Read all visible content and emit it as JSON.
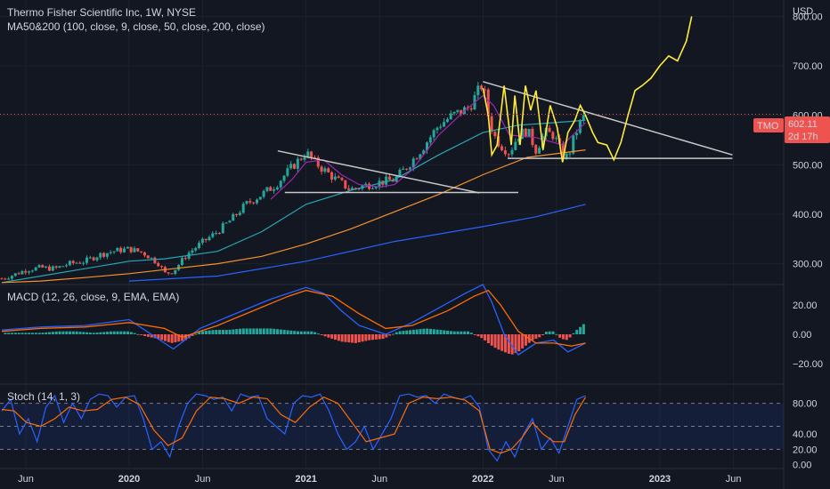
{
  "header": {
    "title": "Thermo Fisher Scientific Inc, 1W, NYSE",
    "ma_label": "MA50&200 (100, close, 9, close, 50, close, 200, close)",
    "currency": "USD"
  },
  "price_tag": {
    "symbol": "TMO",
    "price": "602.11",
    "countdown": "2d 17h"
  },
  "colors": {
    "background": "#131722",
    "up": "#26a69a",
    "down": "#ef5350",
    "ma_purple": "#9c27b0",
    "ma_teal": "#26a6b3",
    "ma_orange": "#f7912a",
    "ma_blue": "#2962ff",
    "projection": "#ffeb3b",
    "trendline": "#c8c8c8",
    "macd": "#2962ff",
    "signal": "#ff6d00",
    "stoch_k": "#2962ff",
    "stoch_d": "#ff6d00",
    "tag": "#ef5350"
  },
  "chart_data": [
    {
      "type": "line",
      "panel": "price",
      "title": "Thermo Fisher Scientific Inc, 1W, NYSE",
      "y_axis_unit": "USD",
      "y_ticks": [
        "800.00",
        "700.00",
        "600.00",
        "500.00",
        "400.00",
        "300.00"
      ],
      "y_tick_values": [
        800,
        700,
        600,
        500,
        400,
        300
      ],
      "ylim": [
        258,
        833
      ],
      "x_ticks": [
        "Jun",
        "2020",
        "Jun",
        "2021",
        "Jun",
        "2022",
        "Jun",
        "2023",
        "Jun"
      ],
      "x_tick_positions": [
        2019.416,
        2020.0,
        2020.416,
        2021.0,
        2021.416,
        2022.0,
        2022.416,
        2023.0,
        2023.416
      ],
      "xlim": [
        2019.27,
        2023.7
      ],
      "close_series": {
        "name": "",
        "x": [
          2019.28,
          2019.35,
          2019.42,
          2019.5,
          2019.58,
          2019.66,
          2019.75,
          2019.83,
          2019.92,
          2020.0,
          2020.08,
          2020.17,
          2020.2,
          2020.25,
          2020.33,
          2020.42,
          2020.5,
          2020.58,
          2020.66,
          2020.75,
          2020.83,
          2020.92,
          2021.0,
          2021.05,
          2021.1,
          2021.17,
          2021.25,
          2021.33,
          2021.42,
          2021.5,
          2021.58,
          2021.66,
          2021.75,
          2021.83,
          2021.92,
          2021.96,
          2022.0,
          2022.03,
          2022.06,
          2022.1,
          2022.15,
          2022.2,
          2022.25,
          2022.3,
          2022.35,
          2022.4,
          2022.45,
          2022.48,
          2022.52,
          2022.55,
          2022.58
        ],
        "values": [
          270,
          278,
          288,
          292,
          290,
          300,
          305,
          318,
          326,
          330,
          322,
          300,
          280,
          285,
          320,
          345,
          365,
          390,
          420,
          440,
          460,
          495,
          525,
          505,
          490,
          470,
          450,
          458,
          465,
          470,
          500,
          535,
          580,
          600,
          615,
          640,
          665,
          600,
          560,
          540,
          525,
          560,
          570,
          530,
          565,
          560,
          520,
          515,
          560,
          585,
          602
        ]
      },
      "ma_series": [
        {
          "name": "",
          "color_key": "ma_teal",
          "x": [
            2019.28,
            2019.5,
            2019.75,
            2020.0,
            2020.2,
            2020.5,
            2020.75,
            2021.0,
            2021.25,
            2021.5,
            2021.75,
            2022.0,
            2022.2,
            2022.4,
            2022.58
          ],
          "values": [
            262,
            275,
            290,
            305,
            310,
            325,
            365,
            420,
            448,
            470,
            520,
            565,
            580,
            585,
            590
          ]
        },
        {
          "name": "",
          "color_key": "ma_orange",
          "x": [
            2019.28,
            2019.5,
            2019.75,
            2020.0,
            2020.25,
            2020.5,
            2020.75,
            2021.0,
            2021.25,
            2021.5,
            2021.75,
            2022.0,
            2022.25,
            2022.58
          ],
          "values": [
            262,
            265,
            272,
            280,
            290,
            300,
            315,
            340,
            370,
            405,
            440,
            480,
            515,
            530
          ]
        },
        {
          "name": "",
          "color_key": "ma_blue",
          "x": [
            2020.0,
            2020.5,
            2021.0,
            2021.5,
            2022.0,
            2022.3,
            2022.58
          ],
          "values": [
            265,
            275,
            305,
            345,
            375,
            395,
            420
          ]
        },
        {
          "name": "",
          "color_key": "ma_purple",
          "x": [
            2020.8,
            2020.92,
            2021.0,
            2021.1,
            2021.2,
            2021.3,
            2021.42,
            2021.5,
            2021.6,
            2021.75,
            2021.9,
            2022.0,
            2022.06,
            2022.15,
            2022.3,
            2022.45,
            2022.58
          ],
          "values": [
            430,
            470,
            505,
            510,
            480,
            460,
            455,
            460,
            490,
            560,
            610,
            640,
            620,
            560,
            555,
            540,
            585
          ]
        }
      ],
      "projection": {
        "name": "",
        "x": [
          2022.0,
          2022.03,
          2022.05,
          2022.08,
          2022.12,
          2022.16,
          2022.18,
          2022.21,
          2022.24,
          2022.27,
          2022.3,
          2022.34,
          2022.38,
          2022.42,
          2022.45,
          2022.48,
          2022.52,
          2022.55,
          2022.58,
          2022.62,
          2022.65,
          2022.7,
          2022.74,
          2022.78,
          2022.82,
          2022.86,
          2022.9,
          2022.95,
          2023.0,
          2023.05,
          2023.1,
          2023.15,
          2023.18
        ],
        "values": [
          655,
          600,
          520,
          540,
          660,
          540,
          640,
          540,
          660,
          610,
          650,
          530,
          620,
          575,
          505,
          565,
          590,
          620,
          600,
          565,
          545,
          540,
          510,
          545,
          600,
          650,
          660,
          675,
          700,
          720,
          710,
          750,
          800
        ]
      },
      "trendlines": [
        {
          "x": [
            2020.84,
            2021.98
          ],
          "values": [
            528,
            443
          ]
        },
        {
          "x": [
            2020.88,
            2022.2
          ],
          "values": [
            444,
            444
          ]
        },
        {
          "x": [
            2022.0,
            2023.41
          ],
          "values": [
            668,
            520
          ]
        },
        {
          "x": [
            2022.14,
            2023.41
          ],
          "values": [
            513,
            513
          ]
        }
      ]
    },
    {
      "type": "line",
      "panel": "macd",
      "title": "MACD (12, 26, close, 9, EMA, EMA)",
      "y_ticks": [
        "20.00",
        "0.00",
        "−20.00"
      ],
      "y_tick_values": [
        20,
        0,
        -20
      ],
      "ylim": [
        -34,
        34
      ],
      "series": [
        {
          "name": "",
          "color_key": "macd",
          "x": [
            2019.28,
            2019.5,
            2019.75,
            2020.0,
            2020.15,
            2020.25,
            2020.4,
            2020.6,
            2020.8,
            2021.0,
            2021.1,
            2021.2,
            2021.3,
            2021.45,
            2021.6,
            2021.75,
            2021.9,
            2022.0,
            2022.05,
            2022.12,
            2022.2,
            2022.3,
            2022.4,
            2022.48,
            2022.58
          ],
          "values": [
            3,
            5,
            6,
            10,
            -2,
            -10,
            4,
            14,
            24,
            32,
            28,
            16,
            6,
            0,
            8,
            18,
            28,
            34,
            22,
            0,
            -14,
            -6,
            -4,
            -12,
            -6
          ]
        },
        {
          "name": "",
          "color_key": "signal",
          "x": [
            2019.28,
            2019.5,
            2019.75,
            2020.0,
            2020.2,
            2020.3,
            2020.5,
            2020.7,
            2020.9,
            2021.0,
            2021.15,
            2021.3,
            2021.45,
            2021.6,
            2021.8,
            2021.95,
            2022.03,
            2022.1,
            2022.2,
            2022.3,
            2022.4,
            2022.5,
            2022.58
          ],
          "values": [
            2,
            4,
            5,
            8,
            4,
            -2,
            6,
            16,
            26,
            30,
            26,
            14,
            4,
            6,
            16,
            26,
            30,
            20,
            2,
            -6,
            -6,
            -8,
            -6
          ]
        }
      ],
      "histogram": {
        "x": [
          2019.3,
          2019.4,
          2019.5,
          2019.6,
          2019.7,
          2019.8,
          2019.9,
          2020.0,
          2020.08,
          2020.16,
          2020.24,
          2020.32,
          2020.4,
          2020.48,
          2020.56,
          2020.64,
          2020.72,
          2020.8,
          2020.88,
          2020.96,
          2021.04,
          2021.12,
          2021.2,
          2021.28,
          2021.36,
          2021.44,
          2021.52,
          2021.6,
          2021.68,
          2021.76,
          2021.84,
          2021.92,
          2022.0,
          2022.04,
          2022.08,
          2022.12,
          2022.16,
          2022.2,
          2022.24,
          2022.28,
          2022.32,
          2022.36,
          2022.4,
          2022.44,
          2022.48,
          2022.52,
          2022.56,
          2022.58
        ],
        "values": [
          1,
          1,
          1,
          2,
          2,
          1,
          2,
          2,
          -1,
          -3,
          -6,
          -4,
          2,
          3,
          3,
          4,
          4,
          4,
          3,
          2,
          2,
          -2,
          -5,
          -6,
          -4,
          -3,
          2,
          3,
          4,
          3,
          2,
          2,
          -3,
          -7,
          -10,
          -12,
          -14,
          -12,
          -8,
          -4,
          -2,
          2,
          2,
          -3,
          -4,
          2,
          6,
          8
        ]
      }
    },
    {
      "type": "line",
      "panel": "stoch",
      "title": "Stoch (14, 1, 3)",
      "y_ticks": [
        "80.00",
        "40.00",
        "20.00",
        "0.00"
      ],
      "y_tick_values": [
        80,
        40,
        20,
        0
      ],
      "ylim": [
        -5,
        105
      ],
      "bands": [
        80,
        50,
        20
      ],
      "series": [
        {
          "name": "",
          "color_key": "stoch_k",
          "x": [
            2019.28,
            2019.33,
            2019.38,
            2019.43,
            2019.48,
            2019.53,
            2019.58,
            2019.63,
            2019.68,
            2019.73,
            2019.78,
            2019.83,
            2019.88,
            2019.93,
            2019.98,
            2020.03,
            2020.08,
            2020.13,
            2020.18,
            2020.23,
            2020.28,
            2020.33,
            2020.38,
            2020.43,
            2020.48,
            2020.53,
            2020.58,
            2020.63,
            2020.68,
            2020.73,
            2020.78,
            2020.83,
            2020.88,
            2020.93,
            2020.98,
            2021.03,
            2021.08,
            2021.13,
            2021.18,
            2021.23,
            2021.28,
            2021.33,
            2021.38,
            2021.43,
            2021.48,
            2021.53,
            2021.58,
            2021.63,
            2021.68,
            2021.73,
            2021.78,
            2021.83,
            2021.88,
            2021.93,
            2021.98,
            2022.03,
            2022.08,
            2022.13,
            2022.18,
            2022.23,
            2022.28,
            2022.33,
            2022.38,
            2022.43,
            2022.48,
            2022.53,
            2022.58
          ],
          "values": [
            70,
            85,
            40,
            60,
            30,
            75,
            90,
            55,
            80,
            60,
            85,
            92,
            90,
            75,
            88,
            90,
            60,
            20,
            30,
            10,
            50,
            80,
            92,
            90,
            85,
            88,
            70,
            92,
            88,
            90,
            60,
            50,
            40,
            80,
            90,
            88,
            92,
            70,
            40,
            20,
            30,
            50,
            20,
            40,
            60,
            90,
            92,
            88,
            90,
            80,
            92,
            88,
            85,
            90,
            75,
            20,
            5,
            30,
            10,
            40,
            60,
            20,
            35,
            15,
            50,
            85,
            90
          ]
        },
        {
          "name": "",
          "color_key": "stoch_d",
          "x": [
            2019.28,
            2019.35,
            2019.42,
            2019.5,
            2019.58,
            2019.66,
            2019.74,
            2019.82,
            2019.9,
            2019.98,
            2020.06,
            2020.14,
            2020.22,
            2020.3,
            2020.38,
            2020.46,
            2020.54,
            2020.62,
            2020.7,
            2020.78,
            2020.86,
            2020.94,
            2021.02,
            2021.1,
            2021.18,
            2021.26,
            2021.34,
            2021.42,
            2021.5,
            2021.58,
            2021.66,
            2021.74,
            2021.82,
            2021.9,
            2021.98,
            2022.04,
            2022.1,
            2022.16,
            2022.22,
            2022.28,
            2022.34,
            2022.4,
            2022.46,
            2022.52,
            2022.58
          ],
          "values": [
            72,
            70,
            55,
            50,
            60,
            75,
            70,
            72,
            85,
            88,
            78,
            45,
            25,
            35,
            70,
            88,
            86,
            80,
            88,
            86,
            65,
            55,
            75,
            88,
            80,
            55,
            30,
            35,
            40,
            80,
            88,
            86,
            88,
            84,
            70,
            20,
            15,
            20,
            35,
            55,
            40,
            30,
            30,
            65,
            88
          ]
        }
      ]
    }
  ]
}
